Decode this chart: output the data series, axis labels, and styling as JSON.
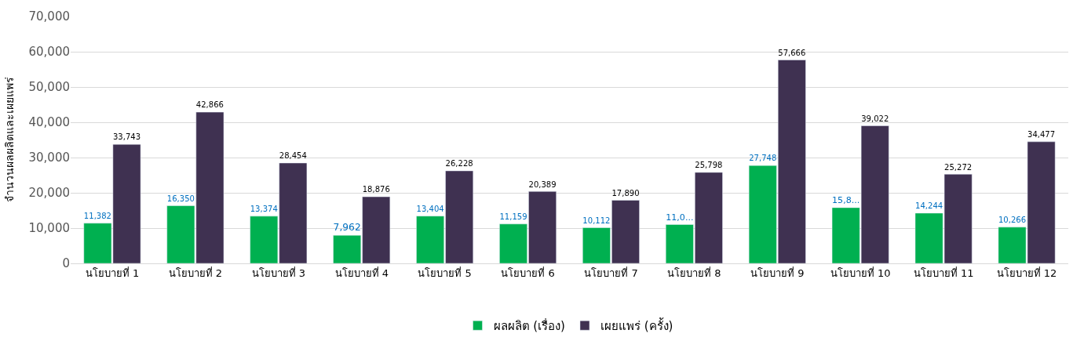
{
  "chart_data": {
    "type": "bar",
    "ylabel": "จำนวนผลผลิตและเผยแพร่",
    "categories": [
      "นโยบายที่ 1",
      "นโยบายที่ 2",
      "นโยบายที่ 3",
      "นโยบายที่ 4",
      "นโยบายที่ 5",
      "นโยบายที่ 6",
      "นโยบายที่ 7",
      "นโยบายที่ 8",
      "นโยบายที่ 9",
      "นโยบายที่ 10",
      "นโยบายที่ 11",
      "นโยบายที่ 12"
    ],
    "series": [
      {
        "name": "ผลผลิต (เรื่อง)",
        "color": "#00b050",
        "values": [
          11382,
          16350,
          13374,
          7962,
          13404,
          11159,
          10112,
          11000,
          27748,
          15800,
          14244,
          10266
        ],
        "value_labels": [
          "11,382",
          "16,350",
          "13,374",
          "7,962",
          "13,404",
          "11,159",
          "10,112",
          "11,0...",
          "27,748",
          "15,8...",
          "14,244",
          "10,266"
        ]
      },
      {
        "name": "เผยแพร่ (ครั้ง)",
        "color": "#3f3151",
        "values": [
          33743,
          42866,
          28454,
          18876,
          26228,
          20389,
          17890,
          25798,
          57666,
          39022,
          25272,
          34477
        ],
        "value_labels": [
          "33,743",
          "42,866",
          "28,454",
          "18,876",
          "26,228",
          "20,389",
          "17,890",
          "25,798",
          "57,666",
          "39,022",
          "25,272",
          "34,477"
        ]
      }
    ],
    "ylim": [
      0,
      70000
    ],
    "yticks": [
      0,
      {
        "value": 10000,
        "label": "10,000"
      },
      {
        "value": 20000,
        "label": "20,000"
      },
      {
        "value": 30000,
        "label": "30,000"
      },
      {
        "value": 40000,
        "label": "40,000"
      },
      {
        "value": 50000,
        "label": "50,000"
      },
      {
        "value": 60000,
        "label": "60,000"
      },
      {
        "value": 70000,
        "label": "70,000"
      }
    ],
    "grid": "y",
    "legend": "bottom"
  }
}
